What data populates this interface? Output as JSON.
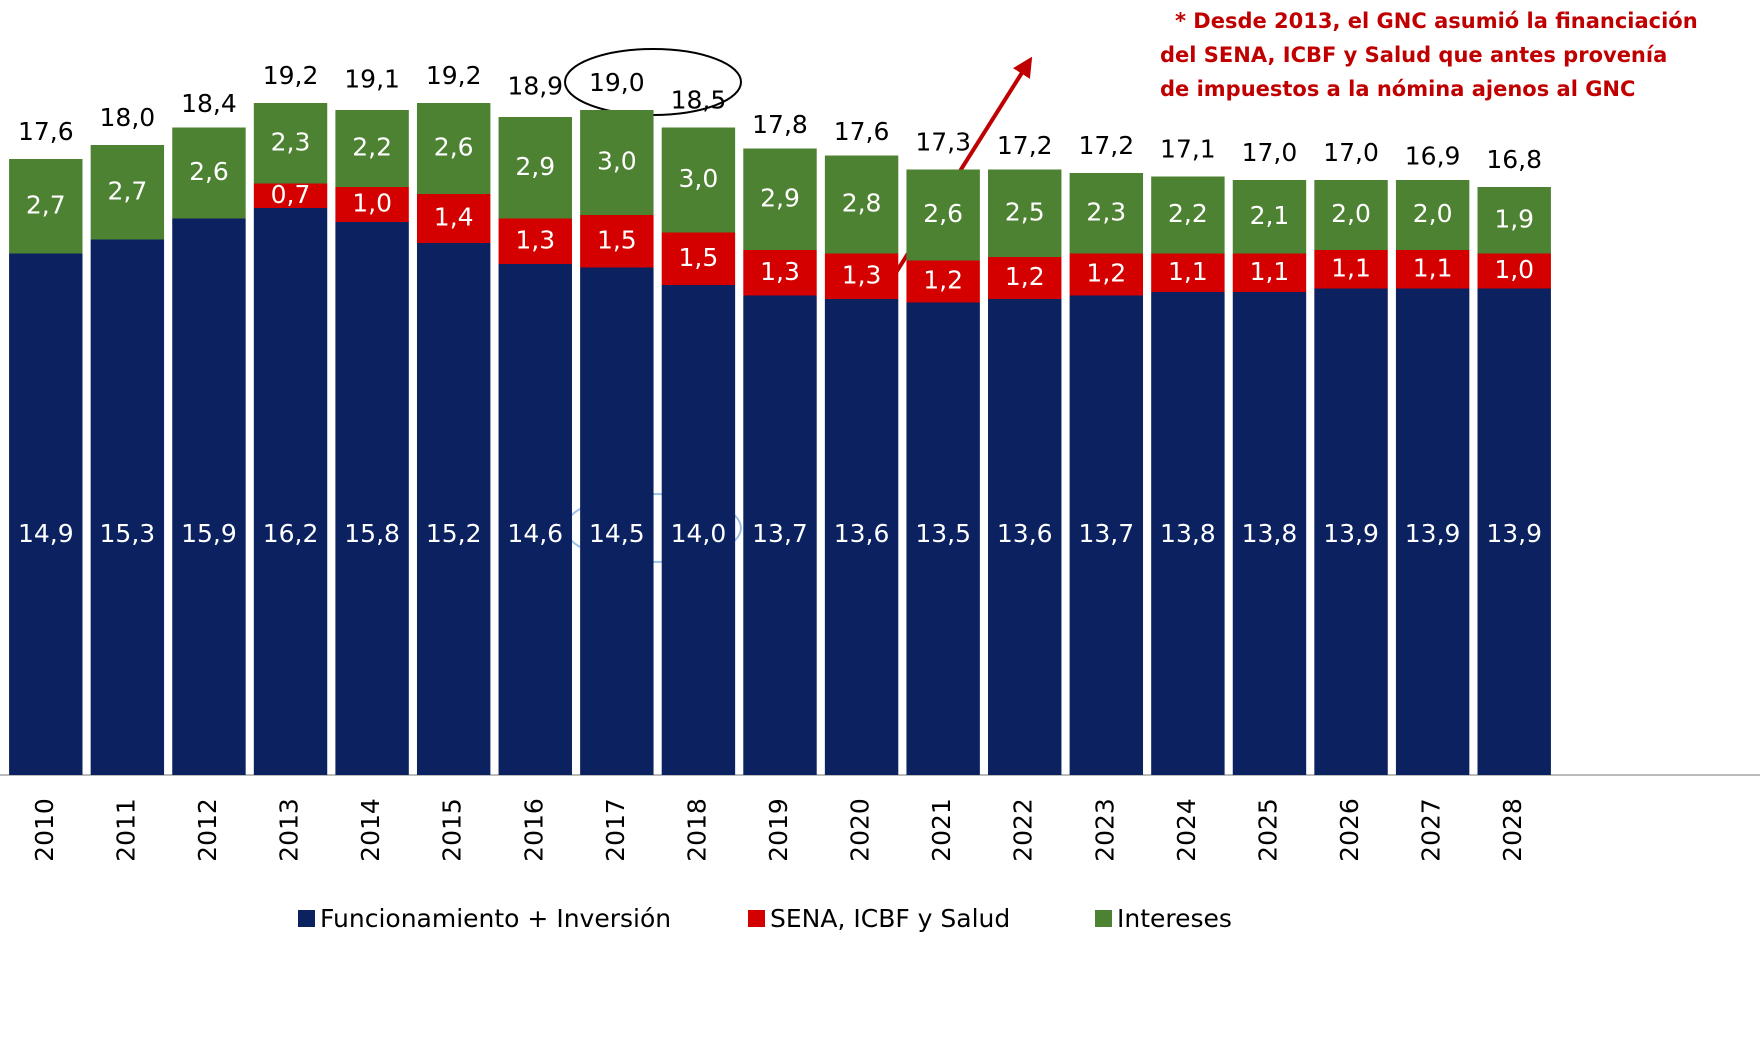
{
  "chart_data": {
    "type": "stacked-bar",
    "categories": [
      "2010",
      "2011",
      "2012",
      "2013",
      "2014",
      "2015",
      "2016",
      "2017",
      "2018",
      "2019",
      "2020",
      "2021",
      "2022",
      "2023",
      "2024",
      "2025",
      "2026",
      "2027",
      "2028"
    ],
    "series": [
      {
        "name": "Funcionamiento + Inversión",
        "color": "#0b2160",
        "values": [
          14.9,
          15.3,
          15.9,
          16.2,
          15.8,
          15.2,
          14.6,
          14.5,
          14.0,
          13.7,
          13.6,
          13.5,
          13.6,
          13.7,
          13.8,
          13.8,
          13.9,
          13.9,
          13.9
        ],
        "value_labels": [
          "14,9",
          "15,3",
          "15,9",
          "16,2",
          "15,8",
          "15,2",
          "14,6",
          "14,5",
          "14,0",
          "13,7",
          "13,6",
          "13,5",
          "13,6",
          "13,7",
          "13,8",
          "13,8",
          "13,9",
          "13,9",
          "13,9"
        ]
      },
      {
        "name": "SENA, ICBF y Salud",
        "color": "#d40000",
        "values": [
          null,
          null,
          null,
          0.7,
          1.0,
          1.4,
          1.3,
          1.5,
          1.5,
          1.3,
          1.3,
          1.2,
          1.2,
          1.2,
          1.1,
          1.1,
          1.1,
          1.1,
          1.0
        ],
        "value_labels": [
          null,
          null,
          null,
          "0,7",
          "1,0",
          "1,4",
          "1,3",
          "1,5",
          "1,5",
          "1,3",
          "1,3",
          "1,2",
          "1,2",
          "1,2",
          "1,1",
          "1,1",
          "1,1",
          "1,1",
          "1,0"
        ]
      },
      {
        "name": "Intereses",
        "color": "#4e8233",
        "values": [
          2.7,
          2.7,
          2.6,
          2.3,
          2.2,
          2.6,
          2.9,
          3.0,
          3.0,
          2.9,
          2.8,
          2.6,
          2.5,
          2.3,
          2.2,
          2.1,
          2.0,
          2.0,
          1.9
        ],
        "value_labels": [
          "2,7",
          "2,7",
          "2,6",
          "2,3",
          "2,2",
          "2,6",
          "2,9",
          "3,0",
          "3,0",
          "2,9",
          "2,8",
          "2,6",
          "2,5",
          "2,3",
          "2,2",
          "2,1",
          "2,0",
          "2,0",
          "1,9"
        ]
      }
    ],
    "totals": {
      "values": [
        17.6,
        18.0,
        18.4,
        19.2,
        19.1,
        19.2,
        18.9,
        19.0,
        18.5,
        17.8,
        17.6,
        17.3,
        17.2,
        17.2,
        17.1,
        17.0,
        17.0,
        16.9,
        16.8
      ],
      "value_labels": [
        "17,6",
        "18,0",
        "18,4",
        "19,2",
        "19,1",
        "19,2",
        "18,9",
        "19,0",
        "18,5",
        "17,8",
        "17,6",
        "17,3",
        "17,2",
        "17,2",
        "17,1",
        "17,0",
        "17,0",
        "16,9",
        "16,8"
      ]
    },
    "annotation": [
      "* Desde 2013, el GNC asumió la financiación",
      "del SENA, ICBF y Salud que antes provenía",
      "de impuestos a la nómina ajenos al GNC"
    ],
    "ylim": [
      0,
      22
    ]
  }
}
